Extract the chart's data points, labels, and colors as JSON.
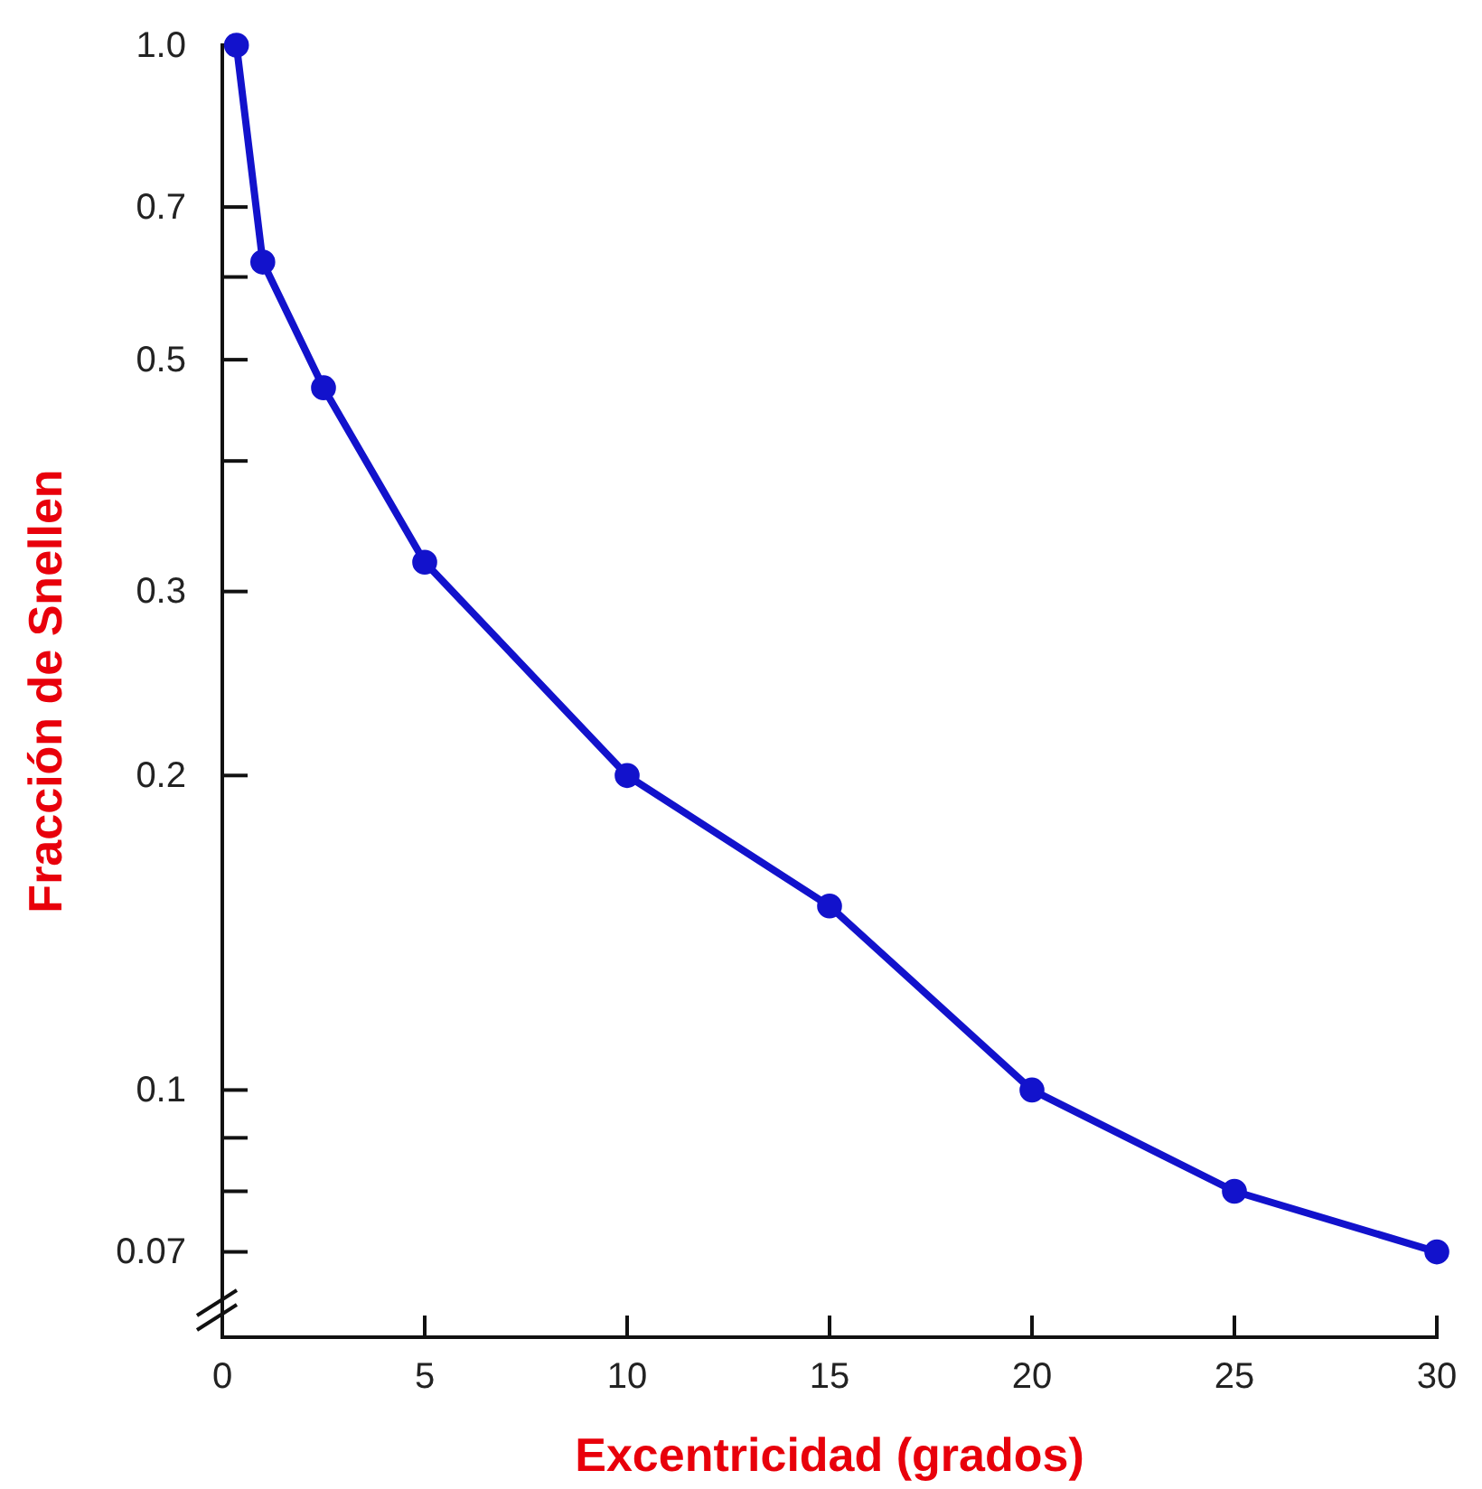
{
  "chart_data": {
    "type": "line",
    "xlabel": "Excentricidad (grados)",
    "ylabel": "Fracción de Snellen",
    "x": [
      0.35,
      1,
      2.5,
      5,
      10,
      15,
      20,
      25,
      30
    ],
    "series": [
      {
        "color": "#1212cc",
        "values": [
          1.0,
          0.62,
          0.47,
          0.32,
          0.2,
          0.15,
          0.1,
          0.08,
          0.07
        ]
      }
    ],
    "log": "y",
    "xlim": [
      0,
      30
    ],
    "ylim": [
      0.058,
      1.0
    ],
    "xticks": [
      0,
      5,
      10,
      15,
      20,
      25,
      30
    ],
    "yticks": [
      {
        "value": 1.0,
        "label": "1.0"
      },
      0.7,
      {
        "value": 0.6,
        "label": null
      },
      0.5,
      {
        "value": 0.4,
        "label": null
      },
      0.3,
      0.2,
      0.1,
      {
        "value": 0.09,
        "label": null
      },
      {
        "value": 0.08,
        "label": null
      },
      0.07
    ],
    "grid": false,
    "marker": "circle",
    "line_style": "solid"
  }
}
